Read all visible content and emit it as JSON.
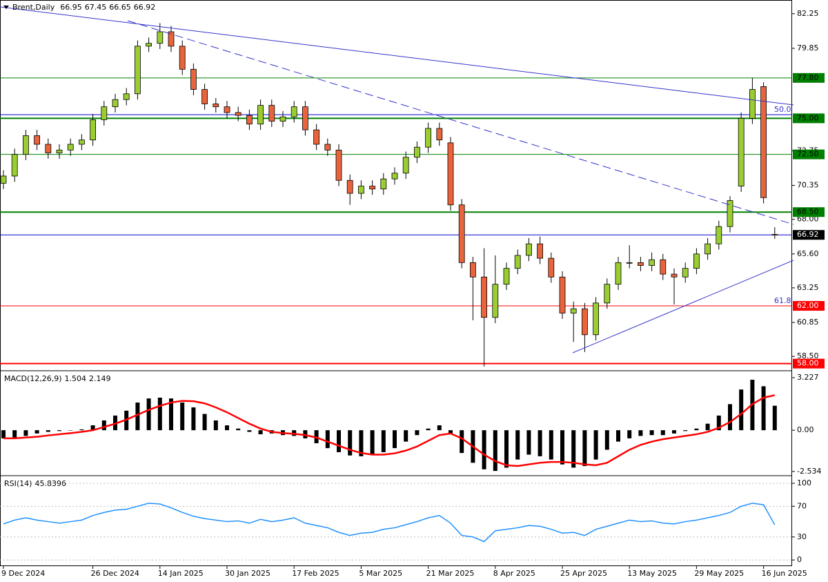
{
  "chart_data": {
    "type": "candlestick",
    "title": "Brent,Daily",
    "categories": [
      "9 Dec 2024",
      null,
      null,
      null,
      null,
      null,
      null,
      null,
      "26 Dec 2024",
      null,
      null,
      null,
      null,
      null,
      "14 Jan 2025",
      null,
      null,
      null,
      null,
      null,
      "30 Jan 2025",
      null,
      null,
      null,
      null,
      null,
      "17 Feb 2025",
      null,
      null,
      null,
      null,
      null,
      "5 Mar 2025",
      null,
      null,
      null,
      null,
      null,
      "21 Mar 2025",
      null,
      null,
      null,
      null,
      null,
      "8 Apr 2025",
      null,
      null,
      null,
      null,
      null,
      "25 Apr 2025",
      null,
      null,
      null,
      null,
      null,
      "13 May 2025",
      null,
      null,
      null,
      null,
      null,
      "29 May 2025",
      null,
      null,
      null,
      null,
      null,
      "16 Jun 2025",
      null
    ],
    "open": [
      70.5,
      71.0,
      72.5,
      73.8,
      73.2,
      72.6,
      72.8,
      73.2,
      73.5,
      74.9,
      75.8,
      76.3,
      76.7,
      80.0,
      80.2,
      81.0,
      80.0,
      78.4,
      77.0,
      76.0,
      75.8,
      75.4,
      75.2,
      74.6,
      75.9,
      74.8,
      75.1,
      75.8,
      74.2,
      73.2,
      72.8,
      70.7,
      69.8,
      70.3,
      70.1,
      70.8,
      71.2,
      72.3,
      73.0,
      74.3,
      73.3,
      69.0,
      65.0,
      64.0,
      61.2,
      63.5,
      64.6,
      65.5,
      66.3,
      65.3,
      64.0,
      61.5,
      61.8,
      60.0,
      62.2,
      63.5,
      65.0,
      65.0,
      64.8,
      65.2,
      64.2,
      64.0,
      64.6,
      65.6,
      66.3,
      67.5,
      70.3,
      75.0,
      77.2,
      66.95
    ],
    "high": [
      71.4,
      72.9,
      74.2,
      74.2,
      73.6,
      73.2,
      73.6,
      73.9,
      75.3,
      76.2,
      76.7,
      77.1,
      80.4,
      80.6,
      81.6,
      81.4,
      80.4,
      78.8,
      77.4,
      76.4,
      76.2,
      75.8,
      75.6,
      76.3,
      76.3,
      75.5,
      76.2,
      76.2,
      74.6,
      73.6,
      73.2,
      71.1,
      70.7,
      70.7,
      71.2,
      71.6,
      72.7,
      73.4,
      74.7,
      74.7,
      73.7,
      69.4,
      65.4,
      66.0,
      65.5,
      65.0,
      65.9,
      66.7,
      66.8,
      65.7,
      64.4,
      62.3,
      62.2,
      62.6,
      63.9,
      65.4,
      66.2,
      65.4,
      65.7,
      65.6,
      64.6,
      65.0,
      66.0,
      66.7,
      67.9,
      69.6,
      75.4,
      77.8,
      77.5,
      67.45
    ],
    "low": [
      70.1,
      70.6,
      72.1,
      72.8,
      72.2,
      72.2,
      72.4,
      72.8,
      73.1,
      74.5,
      75.4,
      75.9,
      76.3,
      79.6,
      79.8,
      79.6,
      78.0,
      76.6,
      75.6,
      75.4,
      75.0,
      74.8,
      74.2,
      74.2,
      74.4,
      74.4,
      74.7,
      73.8,
      72.8,
      72.4,
      70.3,
      69.0,
      69.4,
      69.7,
      69.7,
      70.4,
      70.8,
      71.9,
      72.6,
      73.1,
      68.6,
      64.6,
      61.0,
      57.8,
      60.8,
      63.1,
      64.2,
      65.1,
      64.9,
      63.6,
      61.1,
      59.5,
      58.8,
      59.6,
      61.8,
      63.1,
      64.6,
      64.4,
      64.4,
      63.8,
      62.1,
      63.6,
      64.2,
      65.2,
      65.9,
      67.1,
      69.9,
      74.6,
      69.1,
      66.65
    ],
    "close": [
      71.0,
      72.5,
      73.8,
      73.2,
      72.6,
      72.8,
      73.2,
      73.5,
      74.9,
      75.8,
      76.3,
      76.7,
      80.0,
      80.2,
      81.0,
      80.0,
      78.4,
      77.0,
      76.0,
      75.8,
      75.4,
      75.2,
      74.6,
      75.9,
      74.8,
      75.1,
      75.8,
      74.2,
      73.2,
      72.8,
      70.7,
      69.8,
      70.3,
      70.1,
      70.8,
      71.2,
      72.3,
      73.0,
      74.3,
      73.5,
      69.0,
      65.0,
      64.0,
      61.2,
      63.5,
      64.6,
      65.5,
      66.3,
      65.3,
      64.0,
      61.5,
      61.8,
      60.0,
      62.2,
      63.5,
      65.0,
      65.0,
      64.8,
      65.2,
      64.2,
      64.0,
      64.6,
      65.6,
      66.3,
      67.5,
      69.3,
      75.0,
      77.0,
      69.5,
      66.92
    ],
    "up_color": "#9acd32",
    "down_color": "#e8643c",
    "current_color": "#0000cd",
    "ylim": [
      57.6,
      83.2
    ],
    "yticks": [
      82.25,
      79.85,
      72.75,
      70.35,
      {
        "value": 68,
        "label": "68.00"
      },
      {
        "value": 65.6,
        "label": "65.60"
      },
      63.25,
      60.85,
      {
        "value": 58.5,
        "label": "58.50"
      }
    ],
    "levels": [
      {
        "value": 77.8,
        "label": "77.80",
        "color": "#008000",
        "thick": false
      },
      {
        "value": 75.0,
        "label": "75.00",
        "color": "#008000",
        "thick": true
      },
      {
        "value": 72.5,
        "label": "72.50",
        "color": "#008000",
        "thick": false
      },
      {
        "value": 68.5,
        "label": "68.50",
        "color": "#008000",
        "thick": true
      },
      {
        "value": 62.0,
        "label": "62.00",
        "color": "#ff0000",
        "thick": false
      },
      {
        "value": 58.0,
        "label": "58.00",
        "color": "#ff0000",
        "thick": true
      },
      {
        "value": 75.25,
        "color": "#0000cd",
        "thick": false
      }
    ],
    "annotations": [
      "50.0",
      "61.8"
    ],
    "macd": {
      "title": "MACD(12,26,9)",
      "color": "#000000",
      "signal_color": "#ff0000",
      "histogram": [
        -0.5,
        -0.45,
        -0.35,
        -0.2,
        -0.1,
        -0.05,
        0.0,
        0.05,
        0.3,
        0.6,
        0.9,
        1.2,
        1.7,
        1.95,
        2.0,
        1.95,
        1.7,
        1.4,
        1.0,
        0.6,
        0.3,
        0.1,
        -0.1,
        -0.25,
        -0.2,
        -0.3,
        -0.35,
        -0.5,
        -0.8,
        -1.1,
        -1.35,
        -1.55,
        -1.6,
        -1.5,
        -1.35,
        -1.1,
        -0.7,
        -0.3,
        0.1,
        0.3,
        -0.2,
        -1.4,
        -2.0,
        -2.4,
        -2.5,
        -2.3,
        -1.8,
        -1.5,
        -1.6,
        -1.8,
        -2.1,
        -2.3,
        -2.2,
        -1.8,
        -1.2,
        -0.7,
        -0.5,
        -0.35,
        -0.3,
        -0.3,
        -0.2,
        -0.05,
        0.1,
        0.4,
        0.9,
        1.6,
        2.5,
        3.1,
        2.7,
        1.504
      ],
      "signal": [
        -0.5,
        -0.5,
        -0.45,
        -0.4,
        -0.32,
        -0.25,
        -0.18,
        -0.1,
        0,
        0.2,
        0.4,
        0.65,
        0.95,
        1.25,
        1.5,
        1.7,
        1.8,
        1.78,
        1.65,
        1.4,
        1.1,
        0.75,
        0.4,
        0.1,
        -0.1,
        -0.18,
        -0.22,
        -0.3,
        -0.45,
        -0.7,
        -0.95,
        -1.2,
        -1.4,
        -1.5,
        -1.5,
        -1.42,
        -1.25,
        -1.0,
        -0.65,
        -0.3,
        -0.2,
        -0.5,
        -1.0,
        -1.5,
        -1.9,
        -2.15,
        -2.2,
        -2.1,
        -2.0,
        -1.95,
        -1.95,
        -2.0,
        -2.1,
        -2.15,
        -2.0,
        -1.6,
        -1.2,
        -0.9,
        -0.7,
        -0.55,
        -0.45,
        -0.35,
        -0.25,
        -0.1,
        0.15,
        0.5,
        1.0,
        1.6,
        2.0,
        2.149
      ],
      "ylim": [
        -2.75,
        3.61
      ],
      "yticks": [
        3.227,
        {
          "value": 0,
          "label": "0.00"
        },
        -2.534
      ]
    },
    "rsi": {
      "title": "RSI(14)",
      "color": "#1e90ff",
      "values": [
        47,
        52,
        55,
        52,
        50,
        48,
        50,
        52,
        58,
        62,
        65,
        66,
        70,
        74,
        73,
        68,
        62,
        57,
        54,
        52,
        50,
        51,
        48,
        53,
        50,
        52,
        55,
        48,
        45,
        42,
        36,
        32,
        35,
        36,
        40,
        42,
        46,
        50,
        55,
        58,
        48,
        32,
        30,
        24,
        38,
        40,
        42,
        45,
        44,
        40,
        35,
        36,
        32,
        40,
        44,
        48,
        52,
        50,
        51,
        48,
        47,
        50,
        52,
        55,
        58,
        62,
        70,
        74,
        72,
        45.8396
      ],
      "ylim": [
        -8,
        109
      ],
      "yticks": [
        100,
        70,
        30,
        0
      ]
    }
  }
}
